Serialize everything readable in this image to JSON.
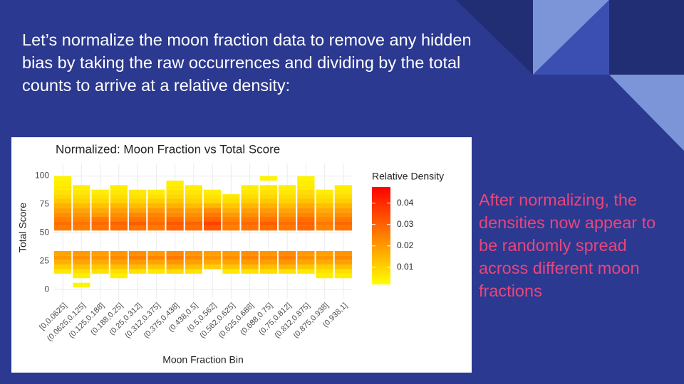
{
  "slide": {
    "heading": "Let’s normalize the moon fraction data to remove any hidden bias by taking the raw occurrences and dividing by the total counts to arrive at a relative density:",
    "note": "After normalizing, the densities now appear to be randomly spread across different moon fractions"
  },
  "chart_data": {
    "type": "heatmap",
    "title": "Normalized: Moon Fraction vs Total Score",
    "x_label": "Moon Fraction Bin",
    "y_label": "Total Score",
    "legend_title": "Relative Density",
    "categories": [
      "[0,0.0625]",
      "(0.0625,0.125]",
      "(0.125,0.188]",
      "(0.188,0.25]",
      "(0.25,0.312]",
      "(0.312,0.375]",
      "(0.375,0.438]",
      "(0.438,0.5]",
      "(0.5,0.562]",
      "(0.562,0.625]",
      "(0.625,0.688]",
      "(0.688,0.75]",
      "(0.75,0.812]",
      "(0.812,0.875]",
      "(0.875,0.938]",
      "(0.938,1]"
    ],
    "y": [
      98,
      94,
      90,
      86,
      82,
      78,
      74,
      70,
      66,
      62,
      58,
      54,
      32,
      28,
      24,
      20,
      16,
      12,
      4
    ],
    "values": [
      [
        0.004,
        null,
        null,
        null,
        null,
        null,
        null,
        null,
        null,
        null,
        null,
        0.004,
        null,
        0.004,
        null,
        null
      ],
      [
        0.005,
        null,
        null,
        null,
        null,
        null,
        0.005,
        null,
        null,
        null,
        null,
        null,
        null,
        0.005,
        null,
        null
      ],
      [
        0.006,
        0.005,
        null,
        0.005,
        null,
        null,
        0.006,
        0.005,
        null,
        null,
        0.005,
        0.006,
        0.005,
        0.006,
        null,
        0.005
      ],
      [
        0.007,
        0.006,
        0.005,
        0.006,
        0.006,
        0.005,
        0.007,
        0.006,
        0.005,
        null,
        0.006,
        0.007,
        0.006,
        0.008,
        0.005,
        0.006
      ],
      [
        0.009,
        0.008,
        0.007,
        0.008,
        0.007,
        0.007,
        0.009,
        0.008,
        0.007,
        0.006,
        0.008,
        0.009,
        0.008,
        0.01,
        0.007,
        0.008
      ],
      [
        0.012,
        0.01,
        0.009,
        0.01,
        0.01,
        0.011,
        0.012,
        0.01,
        0.009,
        0.008,
        0.011,
        0.012,
        0.01,
        0.013,
        0.009,
        0.011
      ],
      [
        0.016,
        0.014,
        0.013,
        0.015,
        0.014,
        0.015,
        0.016,
        0.014,
        0.015,
        0.012,
        0.015,
        0.016,
        0.014,
        0.017,
        0.013,
        0.015
      ],
      [
        0.019,
        0.018,
        0.017,
        0.019,
        0.018,
        0.02,
        0.021,
        0.019,
        0.022,
        0.016,
        0.019,
        0.02,
        0.018,
        0.021,
        0.017,
        0.019
      ],
      [
        0.022,
        0.021,
        0.02,
        0.022,
        0.023,
        0.024,
        0.023,
        0.022,
        0.026,
        0.02,
        0.022,
        0.023,
        0.021,
        0.024,
        0.02,
        0.022
      ],
      [
        0.025,
        0.024,
        0.026,
        0.025,
        0.027,
        0.026,
        0.028,
        0.025,
        0.03,
        0.024,
        0.026,
        0.027,
        0.025,
        0.028,
        0.023,
        0.026
      ],
      [
        0.028,
        0.027,
        0.029,
        0.03,
        0.031,
        0.029,
        0.032,
        0.03,
        0.036,
        0.027,
        0.029,
        0.031,
        0.028,
        0.03,
        0.026,
        0.029
      ],
      [
        0.026,
        0.025,
        0.027,
        0.028,
        0.027,
        0.026,
        0.03,
        0.028,
        0.032,
        0.025,
        0.027,
        0.028,
        0.026,
        0.029,
        0.024,
        0.027
      ],
      [
        0.018,
        0.02,
        0.019,
        0.021,
        0.022,
        0.02,
        0.023,
        0.021,
        0.019,
        0.02,
        0.022,
        0.021,
        0.023,
        0.02,
        0.019,
        0.021
      ],
      [
        0.02,
        0.022,
        0.021,
        0.023,
        0.025,
        0.024,
        0.026,
        0.023,
        0.021,
        0.022,
        0.024,
        0.023,
        0.025,
        0.022,
        0.021,
        0.023
      ],
      [
        0.016,
        0.018,
        0.017,
        0.019,
        0.02,
        0.018,
        0.021,
        0.019,
        0.017,
        0.018,
        0.02,
        0.019,
        0.021,
        0.018,
        0.017,
        0.019
      ],
      [
        0.011,
        0.013,
        0.012,
        0.013,
        0.014,
        0.012,
        0.015,
        0.013,
        0.011,
        0.012,
        0.014,
        0.013,
        0.015,
        0.012,
        0.011,
        0.013
      ],
      [
        0.006,
        0.008,
        0.007,
        0.008,
        0.007,
        0.006,
        0.008,
        0.007,
        null,
        0.006,
        0.007,
        0.008,
        0.007,
        0.006,
        0.007,
        0.008
      ],
      [
        null,
        0.005,
        null,
        0.005,
        null,
        null,
        null,
        null,
        null,
        null,
        null,
        null,
        null,
        null,
        0.005,
        0.005
      ],
      [
        null,
        0.004,
        null,
        null,
        null,
        null,
        null,
        null,
        null,
        null,
        null,
        null,
        null,
        null,
        null,
        null
      ]
    ],
    "ylim": [
      -8,
      111
    ],
    "yticks": [
      0,
      25,
      50,
      75,
      100
    ],
    "grid": true,
    "colorlim": [
      0.002,
      0.0475
    ],
    "colorbar_ticks": [
      0.01,
      0.02,
      0.03,
      0.04
    ],
    "low_color": "#ffff00",
    "high_color": "#ff0000"
  }
}
